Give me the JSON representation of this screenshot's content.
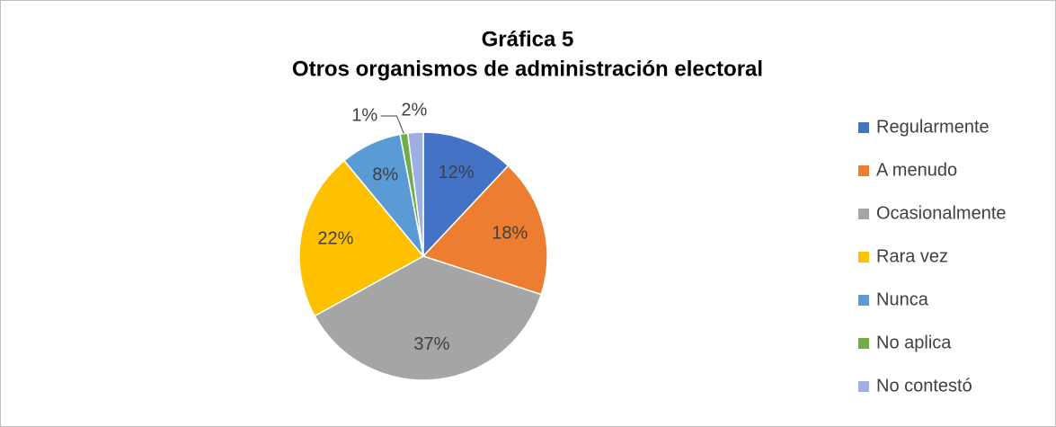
{
  "chart_data": {
    "type": "pie",
    "title": "Gráfica 5",
    "subtitle": "Otros organismos de administración electoral",
    "categories": [
      "Regularmente",
      "A menudo",
      "Ocasionalmente",
      "Rara vez",
      "Nunca",
      "No aplica",
      "No contestó"
    ],
    "values": [
      12,
      18,
      37,
      22,
      8,
      1,
      2
    ],
    "value_labels": [
      "12%",
      "18%",
      "37%",
      "22%",
      "8%",
      "1%",
      "2%"
    ],
    "colors": [
      "#4472c4",
      "#ed7d31",
      "#a5a5a5",
      "#ffc000",
      "#5b9bd5",
      "#70ad47",
      "#9eafe4"
    ],
    "legend": "right"
  }
}
